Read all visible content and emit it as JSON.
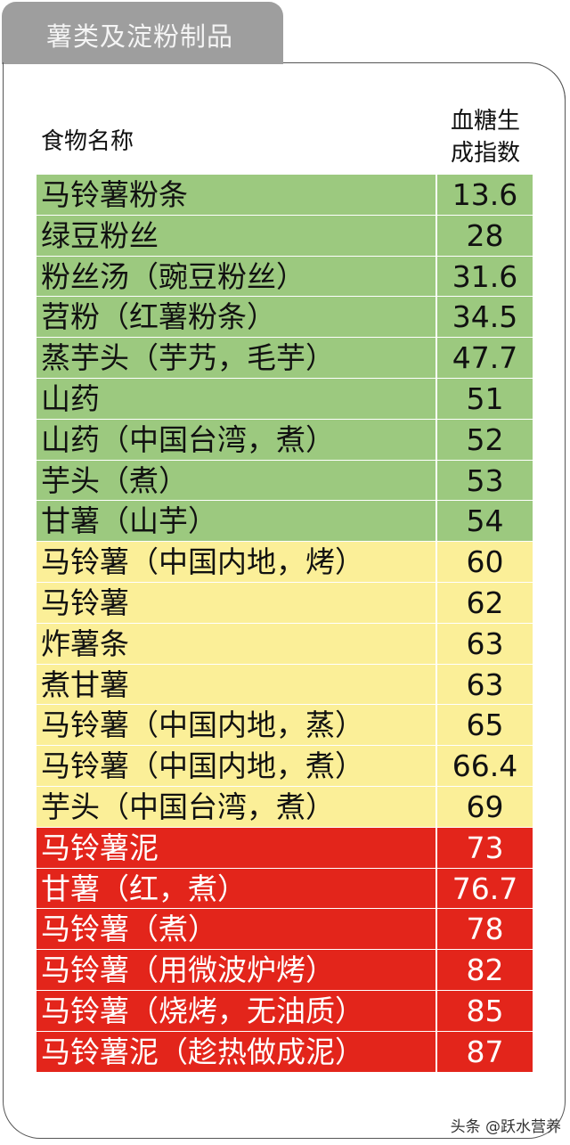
{
  "tab_title": "薯类及淀粉制品",
  "header": {
    "name": "食物名称",
    "value_line1": "血糖生",
    "value_line2": "成指数"
  },
  "colors": {
    "low": "#9cc97f",
    "medium": "#fbef98",
    "high": "#e3251b"
  },
  "rows": [
    {
      "name": "马铃薯粉条",
      "gi": "13.6",
      "level": "green"
    },
    {
      "name": "绿豆粉丝",
      "gi": "28",
      "level": "green"
    },
    {
      "name": "粉丝汤（豌豆粉丝）",
      "gi": "31.6",
      "level": "green"
    },
    {
      "name": "苕粉（红薯粉条）",
      "gi": "34.5",
      "level": "green"
    },
    {
      "name": "蒸芋头（芋艿，毛芋）",
      "gi": "47.7",
      "level": "green"
    },
    {
      "name": "山药",
      "gi": "51",
      "level": "green"
    },
    {
      "name": "山药（中国台湾，煮）",
      "gi": "52",
      "level": "green"
    },
    {
      "name": "芋头（煮）",
      "gi": "53",
      "level": "green"
    },
    {
      "name": "甘薯（山芋）",
      "gi": "54",
      "level": "green"
    },
    {
      "name": "马铃薯（中国内地，烤）",
      "gi": "60",
      "level": "yellow"
    },
    {
      "name": "马铃薯",
      "gi": "62",
      "level": "yellow"
    },
    {
      "name": "炸薯条",
      "gi": "63",
      "level": "yellow"
    },
    {
      "name": "煮甘薯",
      "gi": "63",
      "level": "yellow"
    },
    {
      "name": "马铃薯（中国内地，蒸）",
      "gi": "65",
      "level": "yellow"
    },
    {
      "name": "马铃薯（中国内地，煮）",
      "gi": "66.4",
      "level": "yellow"
    },
    {
      "name": "芋头（中国台湾，煮）",
      "gi": "69",
      "level": "yellow"
    },
    {
      "name": "马铃薯泥",
      "gi": "73",
      "level": "red"
    },
    {
      "name": "甘薯（红，煮）",
      "gi": "76.7",
      "level": "red"
    },
    {
      "name": "马铃薯（煮）",
      "gi": "78",
      "level": "red"
    },
    {
      "name": "马铃薯（用微波炉烤）",
      "gi": "82",
      "level": "red"
    },
    {
      "name": "马铃薯（烧烤，无油质）",
      "gi": "85",
      "level": "red"
    },
    {
      "name": "马铃薯泥（趁热做成泥）",
      "gi": "87",
      "level": "red"
    }
  ],
  "watermark": "头条 @跃水营养"
}
